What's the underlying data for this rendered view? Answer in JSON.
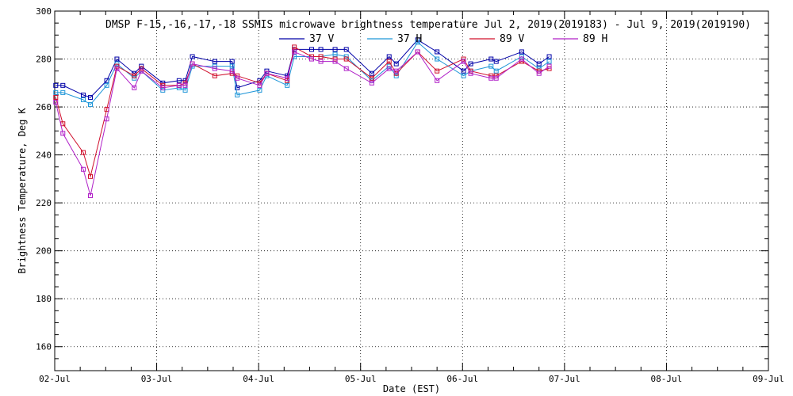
{
  "chart_data": {
    "type": "line",
    "title": "DMSP F-15,-16,-17,-18 SSMIS microwave brightness temperature Jul  2, 2019(2019183) - Jul  9, 2019(2019190)",
    "xlabel": "Date (EST)",
    "ylabel": "Brightness Temperature, Deg K",
    "x_tick_labels": [
      "02-Jul",
      "03-Jul",
      "04-Jul",
      "05-Jul",
      "06-Jul",
      "07-Jul",
      "08-Jul",
      "09-Jul"
    ],
    "x_range_days": [
      0,
      7
    ],
    "ylim": [
      150,
      300
    ],
    "y_ticks": [
      160,
      180,
      200,
      220,
      240,
      260,
      280,
      300
    ],
    "grid": "dotted",
    "legend_position": "top-center",
    "x": [
      0.01,
      0.08,
      0.28,
      0.35,
      0.51,
      0.61,
      0.78,
      0.85,
      1.06,
      1.22,
      1.28,
      1.35,
      1.57,
      1.74,
      1.79,
      2.01,
      2.08,
      2.28,
      2.35,
      2.52,
      2.61,
      2.75,
      2.86,
      3.11,
      3.28,
      3.35,
      3.56,
      3.75,
      4.01,
      4.08,
      4.28,
      4.33,
      4.58,
      4.75,
      4.85
    ],
    "series": [
      {
        "name": "37 V",
        "color": "#0000a8",
        "values": [
          269,
          269,
          265,
          264,
          271,
          280,
          274,
          277,
          270,
          271,
          271,
          281,
          279,
          279,
          268,
          271,
          275,
          273,
          284,
          284,
          284,
          284,
          284,
          274,
          281,
          278,
          288,
          283,
          275,
          278,
          280,
          279,
          283,
          278,
          281
        ]
      },
      {
        "name": "37 H",
        "color": "#1f96d8",
        "values": [
          266,
          266,
          263,
          261,
          269,
          278,
          272,
          275,
          267,
          268,
          267,
          277,
          277,
          277,
          265,
          267,
          273,
          269,
          281,
          281,
          281,
          282,
          281,
          271,
          277,
          273,
          287,
          280,
          273,
          275,
          277,
          275,
          281,
          276,
          279
        ]
      },
      {
        "name": "89 V",
        "color": "#d0102c",
        "values": [
          264,
          253,
          241,
          231,
          259,
          277,
          273,
          276,
          269,
          269,
          270,
          278,
          273,
          274,
          273,
          270,
          274,
          271,
          285,
          281,
          281,
          280,
          280,
          272,
          279,
          274,
          283,
          275,
          280,
          275,
          273,
          273,
          279,
          275,
          276
        ]
      },
      {
        "name": "89 H",
        "color": "#b020c8",
        "values": [
          262,
          249,
          234,
          223,
          255,
          276,
          268,
          275,
          268,
          269,
          269,
          278,
          276,
          275,
          272,
          269,
          274,
          272,
          283,
          280,
          279,
          279,
          276,
          270,
          276,
          275,
          283,
          271,
          279,
          274,
          272,
          272,
          280,
          274,
          277
        ]
      }
    ]
  }
}
